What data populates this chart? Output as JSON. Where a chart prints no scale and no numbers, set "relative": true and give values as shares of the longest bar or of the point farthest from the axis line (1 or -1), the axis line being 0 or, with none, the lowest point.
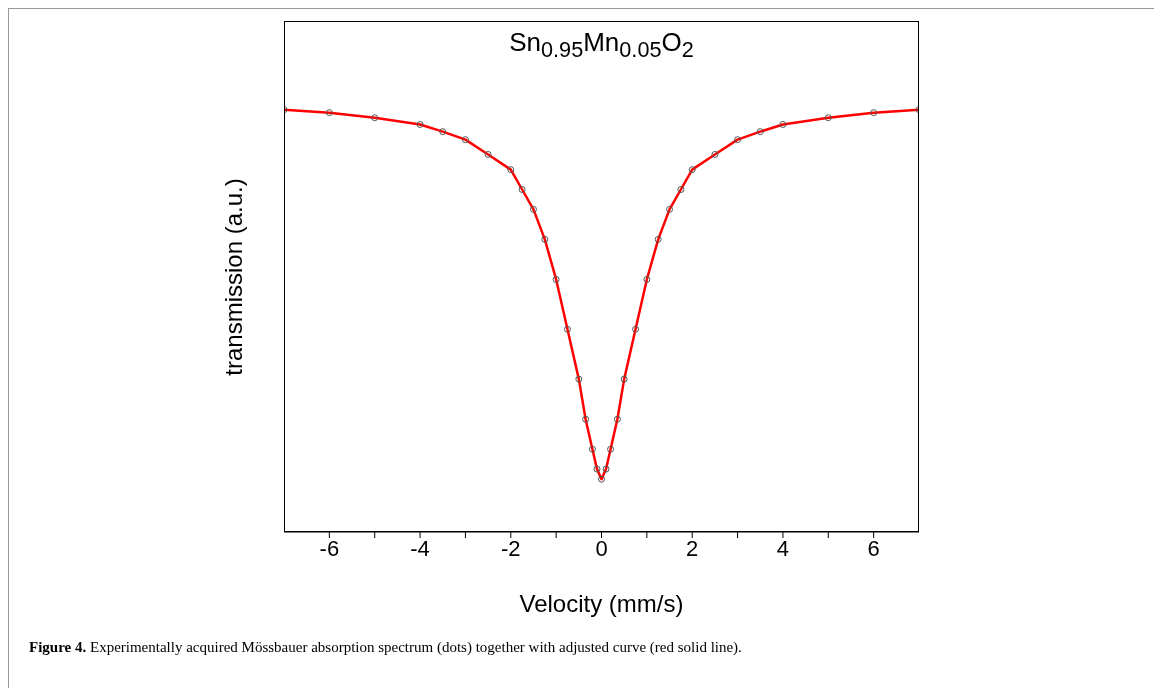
{
  "chart_data": {
    "type": "scatter",
    "title": "Sn$_{0.95}$Mn$_{0.05}$O$_{2}$",
    "xlabel": "Velocity (mm/s)",
    "ylabel": "transmission (a.u.)",
    "annotations": [
      "Figure 4. Experimentally acquired Mössbauer absorption spectrum (dots) together with adjusted curve (red solid line)."
    ],
    "relative": true,
    "xlim": [
      -7,
      7
    ],
    "xticks": [
      -6,
      {
        "value": -5,
        "label": null
      },
      -4,
      {
        "value": -3,
        "label": null
      },
      -2,
      {
        "value": -1,
        "label": null
      },
      0,
      {
        "value": 1,
        "label": null
      },
      2,
      {
        "value": 3,
        "label": null
      },
      4,
      {
        "value": 5,
        "label": null
      },
      6
    ],
    "x": [
      -7,
      -6,
      -5,
      -4,
      -3.5,
      -3,
      -2.5,
      -2,
      -1.75,
      -1.5,
      -1.25,
      -1,
      -0.75,
      -0.5,
      -0.35,
      -0.2,
      -0.1,
      0,
      0.1,
      0.2,
      0.35,
      0.5,
      0.75,
      1,
      1.25,
      1.5,
      1.75,
      2,
      2.5,
      3,
      3.5,
      4,
      5,
      6,
      7
    ],
    "series": [
      {
        "color": "#555555",
        "marker": "circle",
        "values": [
          1.0,
          0.993,
          0.981,
          0.965,
          0.948,
          0.929,
          0.894,
          0.858,
          0.811,
          0.764,
          0.693,
          0.598,
          0.48,
          0.362,
          0.267,
          0.196,
          0.149,
          0.125,
          0.149,
          0.196,
          0.267,
          0.362,
          0.48,
          0.598,
          0.693,
          0.764,
          0.811,
          0.858,
          0.894,
          0.929,
          0.948,
          0.965,
          0.981,
          0.993,
          1.0
        ]
      },
      {
        "type": "line",
        "color": "#ff0000",
        "marker": "none",
        "line_style": "solid",
        "values": [
          1.0,
          0.993,
          0.981,
          0.965,
          0.948,
          0.929,
          0.894,
          0.858,
          0.811,
          0.764,
          0.693,
          0.598,
          0.48,
          0.362,
          0.267,
          0.196,
          0.149,
          0.125,
          0.149,
          0.196,
          0.267,
          0.362,
          0.48,
          0.598,
          0.693,
          0.764,
          0.811,
          0.858,
          0.894,
          0.929,
          0.948,
          0.965,
          0.981,
          0.993,
          1.0
        ]
      }
    ]
  }
}
